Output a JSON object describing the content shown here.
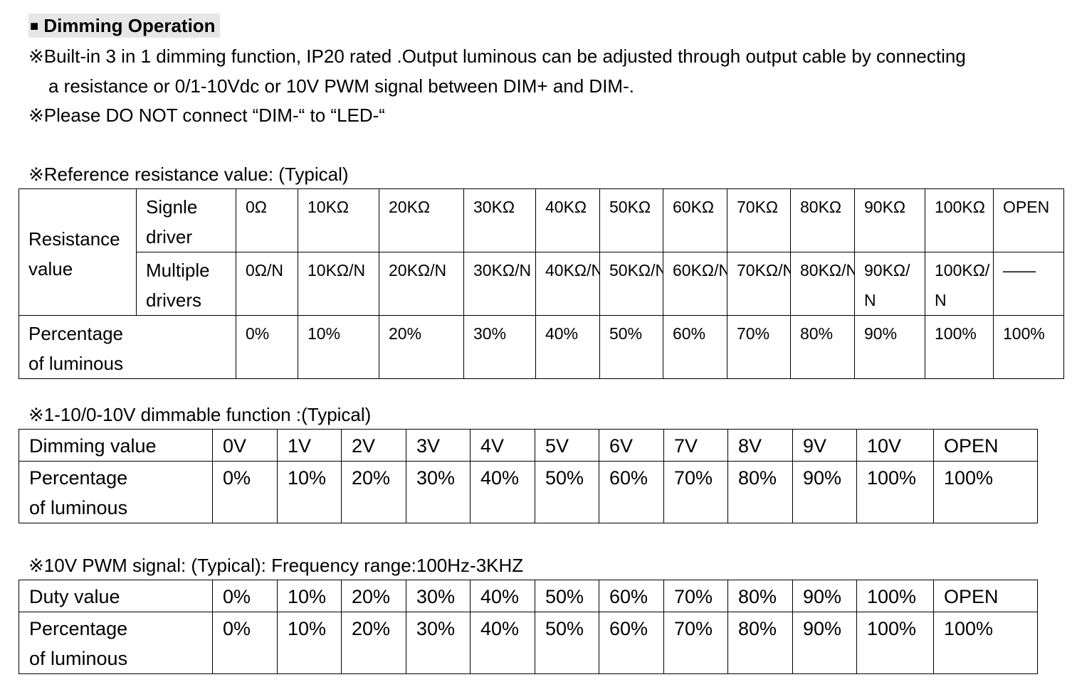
{
  "heading": {
    "bullet": "■",
    "title": "Dimming Operation"
  },
  "notes": [
    "※Built-in 3 in 1 dimming function, IP20 rated .Output luminous can be adjusted through output cable by connecting",
    "a resistance or 0/1-10Vdc or 10V PWM signal between DIM+ and DIM-.",
    "※Please DO NOT connect “DIM-“ to “LED-“"
  ],
  "resistance": {
    "caption": "※Reference resistance value:    (Typical)",
    "label_resistance": [
      "Resistance",
      "value"
    ],
    "label_single": [
      "Signle",
      "driver"
    ],
    "label_multiple": [
      "Multiple",
      "drivers"
    ],
    "label_percentage": [
      "Percentage",
      "of luminous"
    ],
    "single": [
      "0Ω",
      "10KΩ",
      "20KΩ",
      "30KΩ",
      "40KΩ",
      "50KΩ",
      "60KΩ",
      "70KΩ",
      "80KΩ",
      "90KΩ",
      "100KΩ",
      "OPEN"
    ],
    "multiple": [
      "0Ω/N",
      "10KΩ/N",
      "20KΩ/N",
      "30KΩ/N",
      "40KΩ/N",
      "50KΩ/N",
      "60KΩ/N",
      "70KΩ/N",
      "80KΩ/N",
      "90KΩ/ N",
      "100KΩ/ N",
      "——"
    ],
    "percentage": [
      "0%",
      "10%",
      "20%",
      "30%",
      "40%",
      "50%",
      "60%",
      "70%",
      "80%",
      "90%",
      "100%",
      "100%"
    ]
  },
  "voltage": {
    "caption": "※1-10/0-10V dimmable function :(Typical)",
    "label_value": "Dimming value",
    "label_percentage": [
      "Percentage",
      "of luminous"
    ],
    "values": [
      "0V",
      "1V",
      "2V",
      "3V",
      "4V",
      "5V",
      "6V",
      "7V",
      "8V",
      "9V",
      "10V",
      "OPEN"
    ],
    "percentage": [
      "0%",
      "10%",
      "20%",
      "30%",
      "40%",
      "50%",
      "60%",
      "70%",
      "80%",
      "90%",
      "100%",
      "100%"
    ]
  },
  "pwm": {
    "caption": "※10V PWM signal: (Typical): Frequency range:100Hz-3KHZ",
    "label_value": "Duty value",
    "label_percentage": [
      "Percentage",
      "of luminous"
    ],
    "values": [
      "0%",
      "10%",
      "20%",
      "30%",
      "40%",
      "50%",
      "60%",
      "70%",
      "80%",
      "90%",
      "100%",
      "OPEN"
    ],
    "percentage": [
      "0%",
      "10%",
      "20%",
      "30%",
      "40%",
      "50%",
      "60%",
      "70%",
      "80%",
      "90%",
      "100%",
      "100%"
    ]
  }
}
